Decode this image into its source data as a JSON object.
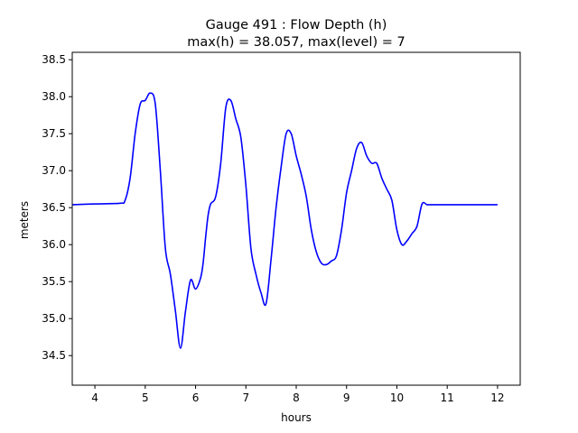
{
  "chart_data": {
    "type": "line",
    "title_line1": "Gauge 491 : Flow Depth (h)",
    "title_line2": "max(h) =  38.057,    max(level) = 7",
    "xlabel": "hours",
    "ylabel": "meters",
    "xlim": [
      3.55,
      12.45
    ],
    "ylim": [
      34.1,
      38.6
    ],
    "xticks": [
      4,
      5,
      6,
      7,
      8,
      9,
      10,
      11,
      12
    ],
    "xtick_labels": [
      "4",
      "5",
      "6",
      "7",
      "8",
      "9",
      "10",
      "11",
      "12"
    ],
    "yticks": [
      34.5,
      35.0,
      35.5,
      36.0,
      36.5,
      37.0,
      37.5,
      38.0,
      38.5
    ],
    "ytick_labels": [
      "34.5",
      "35.0",
      "35.5",
      "36.0",
      "36.5",
      "37.0",
      "37.5",
      "38.0",
      "38.5"
    ],
    "line_color": "#0000ff",
    "grid": false,
    "series": [
      {
        "x": [
          3.55,
          4.0,
          4.5,
          4.6,
          4.7,
          4.8,
          4.9,
          5.0,
          5.1,
          5.2,
          5.3,
          5.4,
          5.5,
          5.6,
          5.7,
          5.8,
          5.9,
          6.0,
          6.1,
          6.15,
          6.2,
          6.25,
          6.3,
          6.4,
          6.5,
          6.6,
          6.7,
          6.8,
          6.9,
          7.0,
          7.1,
          7.2,
          7.3,
          7.4,
          7.5,
          7.6,
          7.7,
          7.8,
          7.9,
          8.0,
          8.1,
          8.2,
          8.3,
          8.4,
          8.5,
          8.6,
          8.7,
          8.8,
          8.9,
          9.0,
          9.1,
          9.2,
          9.3,
          9.4,
          9.5,
          9.6,
          9.7,
          9.8,
          9.9,
          10.0,
          10.1,
          10.2,
          10.3,
          10.4,
          10.5,
          10.6,
          10.7,
          10.8,
          10.9,
          11.0,
          11.1,
          11.2,
          11.3,
          11.4,
          11.5,
          11.6,
          11.7,
          11.8,
          11.9,
          12.0
        ],
        "y": [
          36.54,
          36.55,
          36.56,
          36.6,
          36.9,
          37.5,
          37.9,
          37.95,
          38.05,
          37.9,
          37.0,
          35.95,
          35.6,
          35.1,
          34.6,
          35.1,
          35.52,
          35.4,
          35.55,
          35.75,
          36.1,
          36.4,
          36.55,
          36.65,
          37.1,
          37.85,
          37.95,
          37.7,
          37.45,
          36.8,
          35.95,
          35.6,
          35.35,
          35.2,
          35.8,
          36.5,
          37.05,
          37.5,
          37.5,
          37.2,
          36.95,
          36.65,
          36.2,
          35.9,
          35.75,
          35.73,
          35.78,
          35.85,
          36.2,
          36.7,
          37.0,
          37.3,
          37.38,
          37.2,
          37.1,
          37.1,
          36.9,
          36.75,
          36.6,
          36.2,
          36.0,
          36.05,
          36.15,
          36.25,
          36.55,
          36.54,
          36.54,
          36.54,
          36.54,
          36.54,
          36.54,
          36.54,
          36.54,
          36.54,
          36.54,
          36.54,
          36.54,
          36.54,
          36.54,
          36.54
        ]
      }
    ]
  }
}
